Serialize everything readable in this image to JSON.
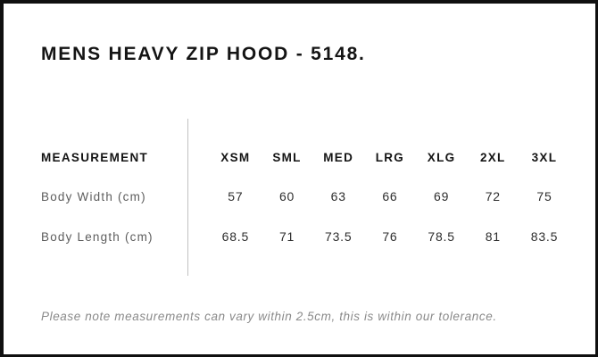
{
  "title": "MENS HEAVY ZIP HOOD - 5148.",
  "table": {
    "measurement_label": "MEASUREMENT",
    "sizes": [
      "XSM",
      "SML",
      "MED",
      "LRG",
      "XLG",
      "2XL",
      "3XL"
    ],
    "rows": [
      {
        "label": "Body Width (cm)",
        "values": [
          "57",
          "60",
          "63",
          "66",
          "69",
          "72",
          "75"
        ]
      },
      {
        "label": "Body Length (cm)",
        "values": [
          "68.5",
          "71",
          "73.5",
          "76",
          "78.5",
          "81",
          "83.5"
        ]
      }
    ]
  },
  "note": "Please note measurements can vary within 2.5cm, this is within our tolerance.",
  "colors": {
    "frame_border": "#101010",
    "heading": "#141414",
    "row_label": "#5d5d5d",
    "value": "#2e2e2e",
    "note": "#8a8a8a",
    "divider": "#c2c2c2",
    "background": "#ffffff"
  }
}
